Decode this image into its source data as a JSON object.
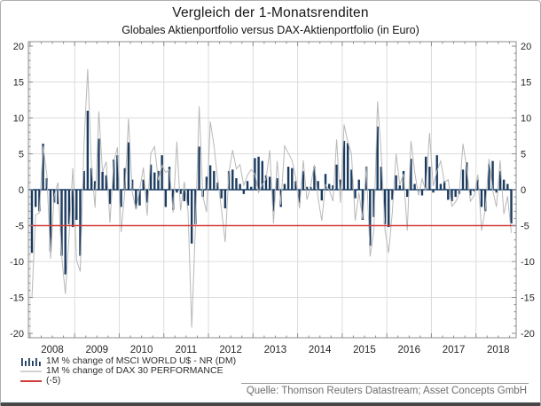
{
  "header": {
    "title": "Vergleich der 1-Monatsrenditen",
    "subtitle": "Globales Aktienportfolio versus DAX-Aktienportfolio (in Euro)"
  },
  "legend": {
    "items": [
      {
        "label": "1M % change of MSCI WORLD U$ - NR (DM)",
        "swatch": "bar-glyph",
        "color": "#1a3a5f"
      },
      {
        "label": "1M % change of DAX 30 PERFORMANCE",
        "swatch": "gray-line",
        "color": "#b8b8b8"
      },
      {
        "label": "(-5)",
        "swatch": "red-line",
        "color": "#d23b3b"
      }
    ]
  },
  "source": {
    "text": "Quelle: Thomson Reuters Datastream; Asset Concepts GmbH"
  },
  "chart_data": {
    "type": "bar",
    "title": "Vergleich der 1-Monatsrenditen",
    "subtitle": "Globales Aktienportfolio versus DAX-Aktienportfolio (in Euro)",
    "x_start": "2008-01",
    "x_end": "2018-10",
    "x_frequency": "monthly",
    "xticks": [
      "2008",
      "2009",
      "2010",
      "2011",
      "2012",
      "2013",
      "2014",
      "2015",
      "2016",
      "2017",
      "2018"
    ],
    "yticks": [
      20,
      15,
      10,
      5,
      0,
      -5,
      -10,
      -15,
      -20
    ],
    "ylim": [
      -20,
      20
    ],
    "grid": true,
    "legend_position": "bottom-left",
    "series": [
      {
        "name": "1M % change of MSCI WORLD U$ - NR (DM)",
        "type": "bar",
        "color": "#1a3a5f",
        "values": [
          -8.8,
          -2.4,
          -3.0,
          6.4,
          1.6,
          -8.6,
          -1.8,
          -2.0,
          -9.2,
          -11.8,
          -4.8,
          -5.2,
          -4.2,
          -9.2,
          2.6,
          11.0,
          3.0,
          1.2,
          7.1,
          2.5,
          2.0,
          -2.0,
          4.2,
          4.8,
          -2.4,
          3.0,
          6.6,
          1.4,
          -2.6,
          -2.2,
          1.4,
          -1.8,
          3.5,
          2.4,
          2.6,
          4.8,
          -2.4,
          3.2,
          -2.8,
          -0.4,
          -0.6,
          -1.6,
          -2.2,
          -7.5,
          -4.8,
          6.0,
          -1.0,
          1.8,
          3.4,
          2.6,
          1.0,
          -1.2,
          -2.6,
          2.6,
          2.8,
          1.6,
          0.8,
          -0.6,
          1.2,
          0.4,
          4.4,
          4.6,
          4.0,
          2.0,
          1.8,
          -3.0,
          1.6,
          -2.4,
          0.8,
          3.2,
          3.0,
          1.2,
          -1.8,
          2.6,
          0.4,
          0.4,
          3.2,
          1.2,
          -1.5,
          2.2,
          0.8,
          0.6,
          3.5,
          1.4,
          6.8,
          6.5,
          2.8,
          -1.2,
          1.4,
          -4.2,
          3.2,
          -7.8,
          -3.8,
          8.8,
          3.2,
          -4.8,
          -5.2,
          -1.4,
          2.0,
          0.6,
          2.6,
          -1.0,
          4.3,
          0.8,
          -0.2,
          -0.8,
          4.6,
          3.2,
          -0.4,
          4.8,
          0.8,
          1.2,
          -1.4,
          -1.6,
          -1.0,
          -0.6,
          2.8,
          3.8,
          -0.8,
          -0.2,
          1.4,
          -2.4,
          -3.0,
          3.6,
          4.0,
          -0.4,
          2.6,
          1.4,
          0.8,
          -4.7
        ]
      },
      {
        "name": "1M % change of DAX 30 PERFORMANCE",
        "type": "line",
        "color": "#b8b8b8",
        "values": [
          -15.1,
          -3.5,
          -3.2,
          6.1,
          2.1,
          -9.6,
          -0.9,
          1.0,
          -9.2,
          -14.5,
          -6.4,
          3.0,
          -9.8,
          -11.4,
          6.3,
          16.8,
          3.6,
          -2.5,
          10.9,
          2.5,
          3.9,
          -4.6,
          3.9,
          5.9,
          -5.9,
          -0.2,
          9.9,
          -0.3,
          -2.8,
          0.0,
          3.1,
          -3.6,
          5.1,
          6.0,
          1.3,
          3.4,
          2.4,
          2.8,
          -3.2,
          6.7,
          -2.9,
          1.1,
          -3.0,
          -19.2,
          -4.9,
          11.6,
          -0.9,
          -3.1,
          9.5,
          6.1,
          1.3,
          -2.7,
          -7.3,
          2.4,
          5.5,
          2.9,
          3.5,
          0.6,
          2.0,
          2.8,
          2.2,
          -0.4,
          0.7,
          1.5,
          5.5,
          -4.7,
          4.0,
          -2.1,
          6.1,
          5.1,
          4.1,
          1.6,
          -2.6,
          4.1,
          -1.4,
          0.5,
          3.5,
          -1.1,
          -4.3,
          0.7,
          0.0,
          -1.6,
          7.0,
          -1.8,
          9.1,
          6.6,
          5.0,
          -4.3,
          -0.4,
          -4.1,
          3.3,
          -9.3,
          -5.8,
          12.3,
          4.9,
          -5.6,
          -8.8,
          -3.1,
          5.0,
          0.7,
          2.2,
          -5.7,
          6.8,
          2.5,
          -0.8,
          1.5,
          -0.2,
          7.9,
          0.5,
          2.6,
          4.0,
          1.0,
          1.4,
          -2.3,
          -1.7,
          -0.5,
          6.4,
          3.1,
          -1.6,
          -0.8,
          2.1,
          -5.7,
          -2.7,
          4.3,
          -0.1,
          -2.4,
          4.1,
          -3.4,
          -0.9,
          -6.0
        ]
      },
      {
        "name": "(-5)",
        "type": "hline",
        "color": "#d23b3b",
        "value": -5
      }
    ]
  }
}
